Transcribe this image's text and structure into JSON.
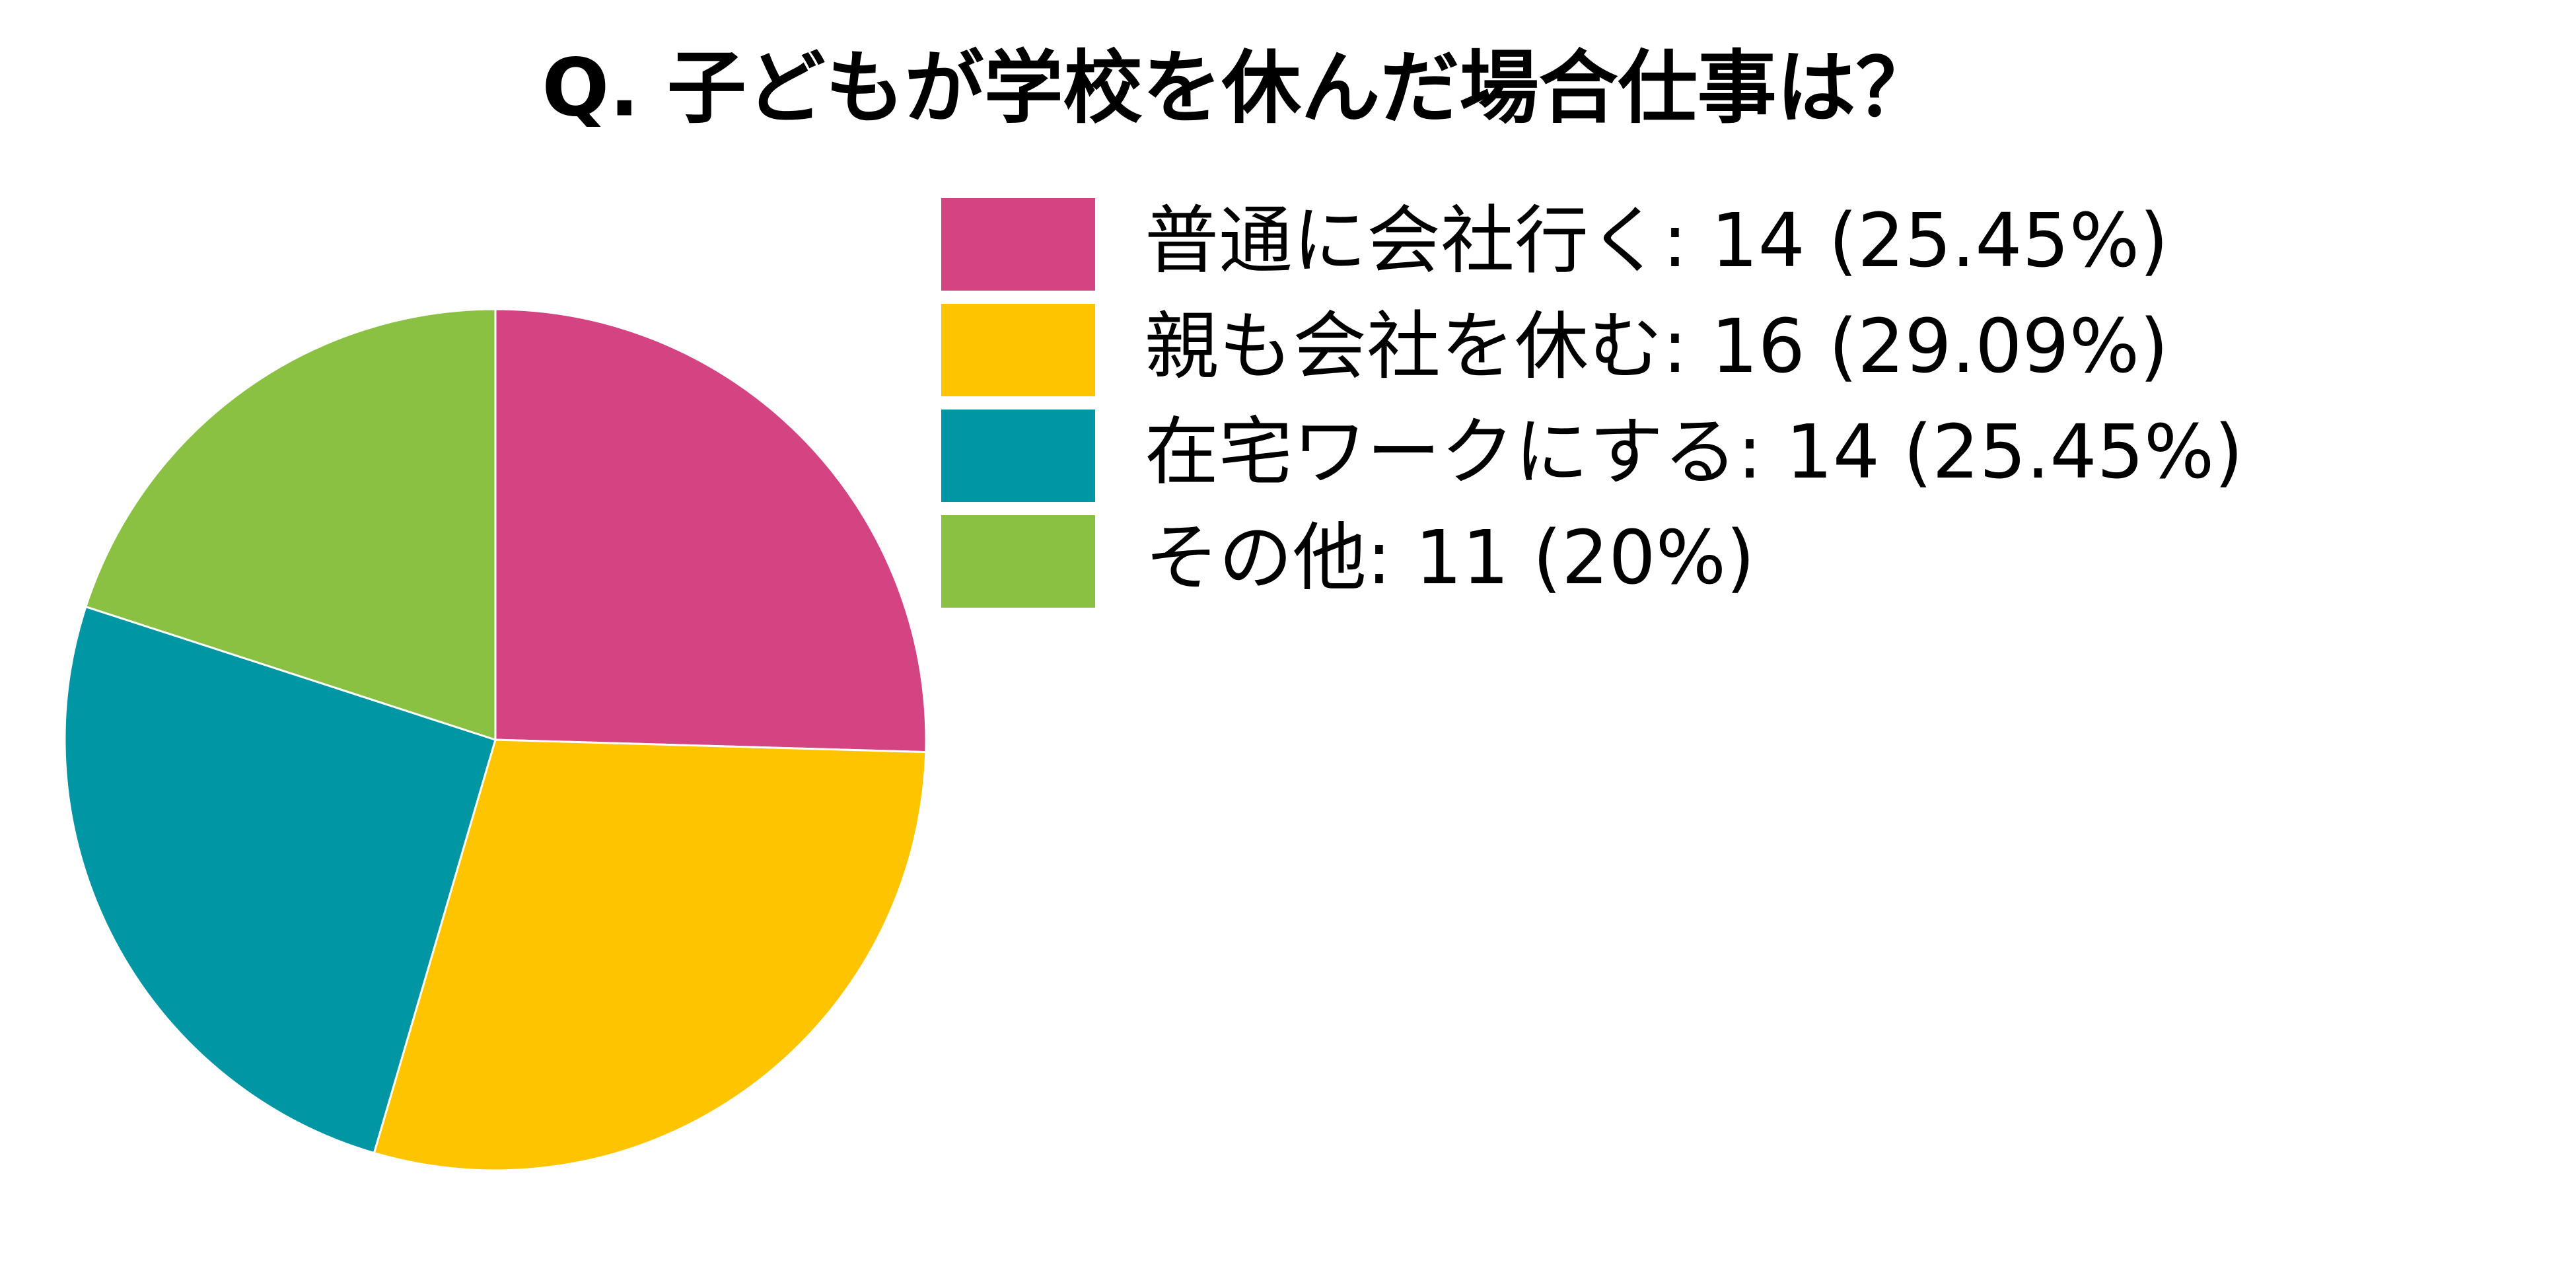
{
  "chart_data": {
    "type": "pie",
    "title": "Q. 子どもが学校を休んだ場合仕事は？",
    "categories": [
      "普通に会社行く: 14 (25.45%)",
      "親も会社を休む: 16 (29.09%)",
      "在宅ワークにする: 14 (25.45%)",
      "その他: 11 (20%)"
    ],
    "values": [
      14,
      16,
      14,
      11
    ],
    "colors": [
      "#d44382",
      "#ffc400",
      "#0096a4",
      "#8bc142"
    ],
    "legend": "upper right"
  }
}
